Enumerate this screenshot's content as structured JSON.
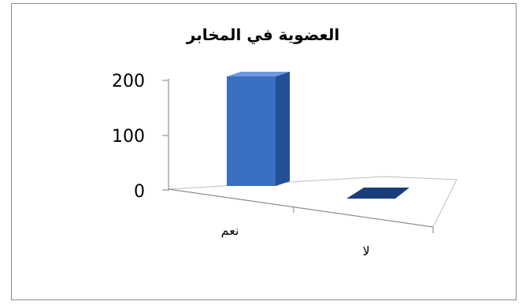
{
  "chart_data": {
    "type": "bar",
    "title": "العضوية في المخابر",
    "categories": [
      "نعم",
      "لا"
    ],
    "values": [
      200,
      0
    ],
    "y_ticks": [
      "0",
      "100",
      "200"
    ],
    "ylim": [
      0,
      200
    ],
    "bar_color": "#3a6fc1",
    "bar_top_color": "#6d98df",
    "bar_side_color": "#234f96",
    "flat_bar_color": "#1a3f78",
    "grid": false,
    "legend": "none",
    "three_d": true
  }
}
